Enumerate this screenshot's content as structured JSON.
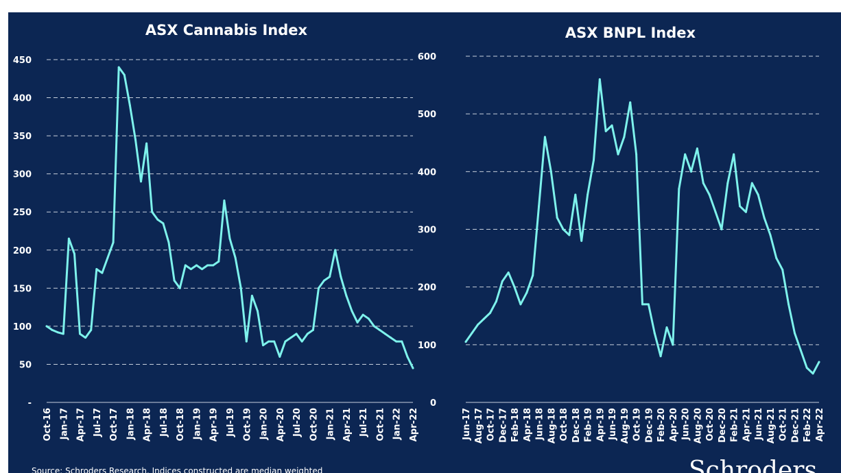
{
  "colors": {
    "background": "#0c2653",
    "line": "#7ef2ec",
    "text": "#ffffff",
    "grid": "#c8d0dc"
  },
  "footer": {
    "source": "Source: Schroders Research. Indices constructed are median weighted",
    "brand": "Schroders"
  },
  "chart_data": [
    {
      "type": "line",
      "title": "ASX Cannabis Index",
      "xlabel": "",
      "ylabel": "",
      "ylim": [
        0,
        450
      ],
      "y_ticks": [
        0,
        50,
        100,
        150,
        200,
        250,
        300,
        350,
        400,
        450
      ],
      "y_tick_labels": [
        "-",
        "50",
        "100",
        "150",
        "200",
        "250",
        "300",
        "350",
        "400",
        "450"
      ],
      "x_tick_labels": [
        "Oct-16",
        "Jan-17",
        "Apr-17",
        "Jul-17",
        "Oct-17",
        "Jan-18",
        "Apr-18",
        "Jul-18",
        "Oct-18",
        "Jan-19",
        "Apr-19",
        "Jul-19",
        "Oct-19",
        "Jan-20",
        "Apr-20",
        "Jul-20",
        "Oct-20",
        "Jan-21",
        "Apr-21",
        "Jul-21",
        "Oct-21",
        "Jan-22",
        "Apr-22"
      ],
      "grid": true,
      "x_period": "monthly",
      "series": [
        {
          "x": [
            "Oct-16",
            "Nov-16",
            "Dec-16",
            "Jan-17",
            "Feb-17",
            "Mar-17",
            "Apr-17",
            "May-17",
            "Jun-17",
            "Jul-17",
            "Aug-17",
            "Sep-17",
            "Oct-17",
            "Nov-17",
            "Dec-17",
            "Jan-18",
            "Feb-18",
            "Mar-18",
            "Apr-18",
            "May-18",
            "Jun-18",
            "Jul-18",
            "Aug-18",
            "Sep-18",
            "Oct-18",
            "Nov-18",
            "Dec-18",
            "Jan-19",
            "Feb-19",
            "Mar-19",
            "Apr-19",
            "May-19",
            "Jun-19",
            "Jul-19",
            "Aug-19",
            "Sep-19",
            "Oct-19",
            "Nov-19",
            "Dec-19",
            "Jan-20",
            "Feb-20",
            "Mar-20",
            "Apr-20",
            "May-20",
            "Jun-20",
            "Jul-20",
            "Aug-20",
            "Sep-20",
            "Oct-20",
            "Nov-20",
            "Dec-20",
            "Jan-21",
            "Feb-21",
            "Mar-21",
            "Apr-21",
            "May-21",
            "Jun-21",
            "Jul-21",
            "Aug-21",
            "Sep-21",
            "Oct-21",
            "Nov-21",
            "Dec-21",
            "Jan-22",
            "Feb-22",
            "Mar-22",
            "Apr-22"
          ],
          "values": [
            100,
            95,
            92,
            90,
            215,
            195,
            90,
            85,
            95,
            175,
            170,
            190,
            210,
            440,
            430,
            390,
            345,
            290,
            340,
            250,
            240,
            235,
            210,
            160,
            150,
            180,
            175,
            180,
            175,
            180,
            180,
            185,
            265,
            215,
            190,
            150,
            80,
            140,
            120,
            75,
            80,
            80,
            60,
            80,
            85,
            90,
            80,
            90,
            95,
            150,
            160,
            165,
            200,
            165,
            140,
            120,
            105,
            115,
            110,
            100,
            95,
            90,
            85,
            80,
            80,
            60,
            45
          ]
        }
      ]
    },
    {
      "type": "line",
      "title": "ASX BNPL Index",
      "xlabel": "",
      "ylabel": "",
      "ylim": [
        0,
        600
      ],
      "y_ticks": [
        0,
        100,
        200,
        300,
        400,
        500,
        600
      ],
      "y_tick_labels": [
        "0",
        "100",
        "200",
        "300",
        "400",
        "500",
        "600"
      ],
      "x_tick_labels": [
        "Jun-17",
        "Aug-17",
        "Oct-17",
        "Dec-17",
        "Feb-18",
        "Apr-18",
        "Jun-18",
        "Aug-18",
        "Oct-18",
        "Dec-18",
        "Feb-19",
        "Apr-19",
        "Jun-19",
        "Aug-19",
        "Oct-19",
        "Dec-19",
        "Feb-20",
        "Apr-20",
        "Jun-20",
        "Aug-20",
        "Oct-20",
        "Dec-20",
        "Feb-21",
        "Apr-21",
        "Jun-21",
        "Aug-21",
        "Oct-21",
        "Dec-21",
        "Feb-22",
        "Apr-22"
      ],
      "grid": true,
      "x_period": "monthly",
      "series": [
        {
          "x": [
            "Jun-17",
            "Jul-17",
            "Aug-17",
            "Sep-17",
            "Oct-17",
            "Nov-17",
            "Dec-17",
            "Jan-18",
            "Feb-18",
            "Mar-18",
            "Apr-18",
            "May-18",
            "Jun-18",
            "Jul-18",
            "Aug-18",
            "Sep-18",
            "Oct-18",
            "Nov-18",
            "Dec-18",
            "Jan-19",
            "Feb-19",
            "Mar-19",
            "Apr-19",
            "May-19",
            "Jun-19",
            "Jul-19",
            "Aug-19",
            "Sep-19",
            "Oct-19",
            "Nov-19",
            "Dec-19",
            "Jan-20",
            "Feb-20",
            "Mar-20",
            "Apr-20",
            "May-20",
            "Jun-20",
            "Jul-20",
            "Aug-20",
            "Sep-20",
            "Oct-20",
            "Nov-20",
            "Dec-20",
            "Jan-21",
            "Feb-21",
            "Mar-21",
            "Apr-21",
            "May-21",
            "Jun-21",
            "Jul-21",
            "Aug-21",
            "Sep-21",
            "Oct-21",
            "Nov-21",
            "Dec-21",
            "Jan-22",
            "Feb-22",
            "Mar-22",
            "Apr-22"
          ],
          "values": [
            105,
            120,
            135,
            145,
            155,
            175,
            210,
            225,
            200,
            170,
            190,
            220,
            340,
            460,
            400,
            320,
            300,
            290,
            360,
            280,
            360,
            420,
            560,
            470,
            480,
            430,
            460,
            520,
            430,
            170,
            170,
            120,
            80,
            130,
            100,
            370,
            430,
            400,
            440,
            380,
            360,
            330,
            300,
            380,
            430,
            340,
            330,
            380,
            360,
            320,
            290,
            250,
            230,
            170,
            120,
            90,
            60,
            50,
            70
          ]
        }
      ]
    }
  ]
}
